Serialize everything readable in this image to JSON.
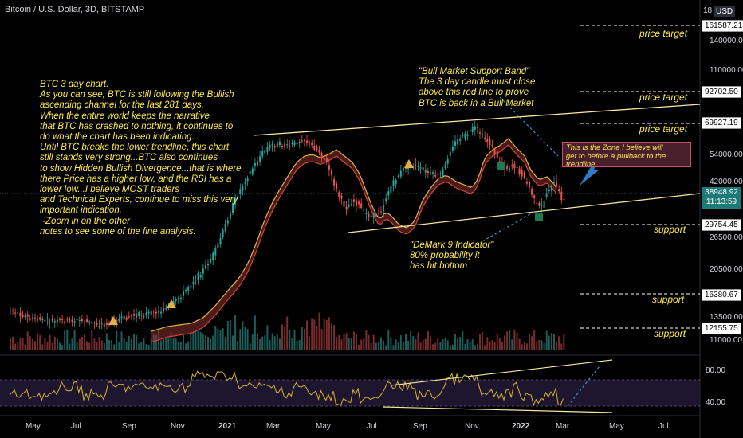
{
  "header": {
    "title": "Bitcoin / U.S. Dollar, 3D, BITSTAMP",
    "currency": "USD",
    "top_tick": "18"
  },
  "annotations": {
    "main_note": "BTC 3 day chart.\nAs you can see, BTC is still following the Bullish\nascending channel for the last 281 days.\nWhen the entire world keeps the narrative\nthat BTC has crashed to nothing, it continues to\ndo what the chart has been indicating...\nUntil BTC breaks the lower trendline, this chart\nstill stands very strong...BTC also continues\nto show Hidden Bullish Divergence...that is where\nthere Price has a higher low, and the RSI has a\nlower low...I believe MOST traders\nand Technical Experts, continue to miss this very\nimportant indication.\n -Zoom in on the other\nnotes to see some of the fine analysis.",
    "bull_band": "\"Bull Market Support Band\"\nThe 3 day candle must close\nabove this red line to prove\nBTC is back in a Bull Market",
    "demark": "\"DeMark 9 Indicator\"\n80% probability it\nhas hit bottom",
    "zone": "This is the Zone I believe will\nget to before a pullback to the\ntrendline."
  },
  "levels": [
    {
      "value": "161587.21",
      "label": "price target"
    },
    {
      "value": "92702.50",
      "label": "price target"
    },
    {
      "value": "69927.19",
      "label": "price target"
    },
    {
      "value": "29754.45",
      "label": "support"
    },
    {
      "value": "16380.67",
      "label": "support"
    },
    {
      "value": "12155.75",
      "label": "support"
    }
  ],
  "price_scale": [
    "140000.00",
    "110000.00",
    "54000.00",
    "42000.00",
    "26500.00",
    "20500.00",
    "13500.00",
    "11000.00"
  ],
  "current_price": {
    "value": "38948.92",
    "countdown": "11:13:59"
  },
  "rsi_scale": [
    "80.00",
    "40.00"
  ],
  "x_axis": [
    {
      "label": "May",
      "bold": false
    },
    {
      "label": "Jul",
      "bold": false
    },
    {
      "label": "Sep",
      "bold": false
    },
    {
      "label": "Nov",
      "bold": false
    },
    {
      "label": "2021",
      "bold": true
    },
    {
      "label": "Mar",
      "bold": false
    },
    {
      "label": "May",
      "bold": false
    },
    {
      "label": "Jul",
      "bold": false
    },
    {
      "label": "Sep",
      "bold": false
    },
    {
      "label": "Nov",
      "bold": false
    },
    {
      "label": "2022",
      "bold": true
    },
    {
      "label": "Mar",
      "bold": false
    },
    {
      "label": "May",
      "bold": false
    },
    {
      "label": "Jul",
      "bold": false
    }
  ],
  "colors": {
    "up": "#26a69a",
    "down": "#ef5350",
    "annotation": "#ffe94d",
    "trendline": "#f5e6a0",
    "rsi": "#d9b52f",
    "band_fill": "#8c2f2f",
    "band_line_top": "#e0b24a",
    "band_line_bottom": "#d0453c"
  }
}
